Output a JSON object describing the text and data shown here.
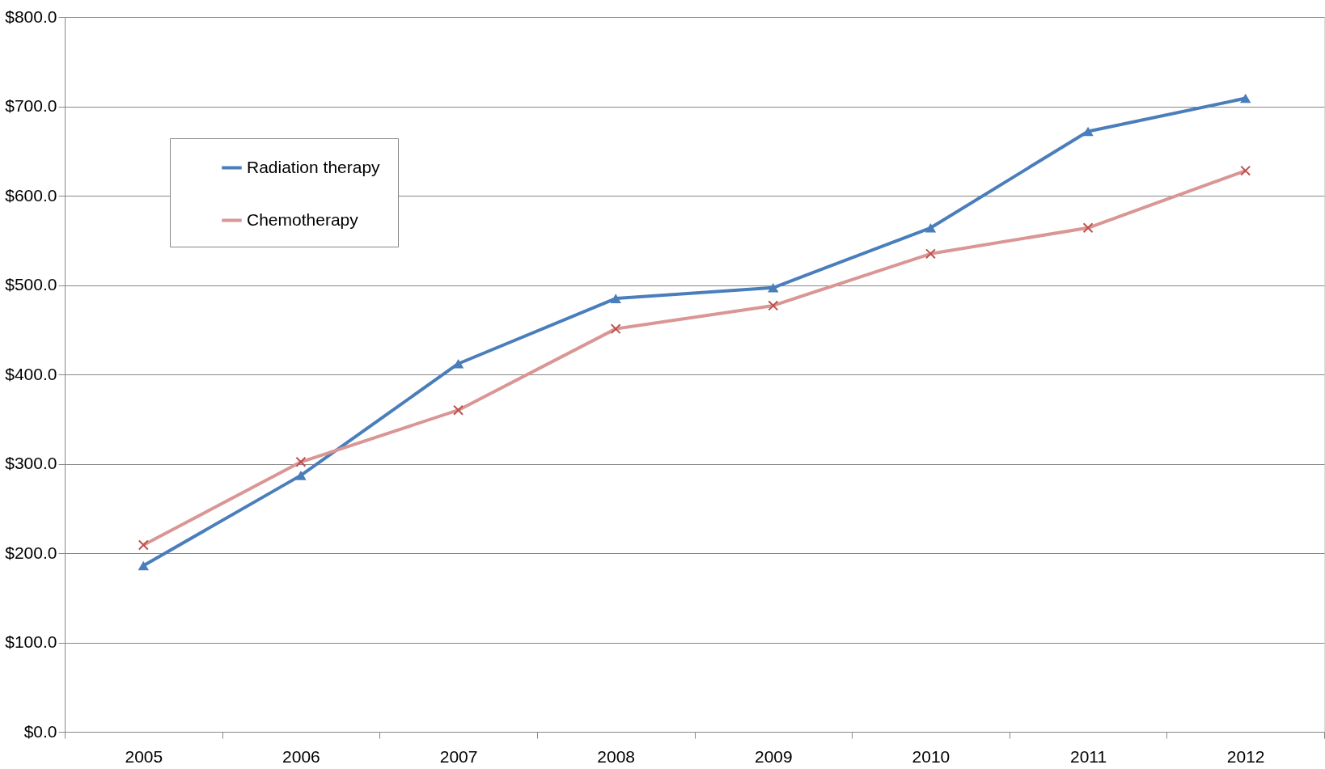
{
  "chart_data": {
    "type": "line",
    "categories": [
      "2005",
      "2006",
      "2007",
      "2008",
      "2009",
      "2010",
      "2011",
      "2012"
    ],
    "series": [
      {
        "name": "Radiation therapy",
        "color": "#4a7ebb",
        "marker": "triangle",
        "values": [
          186,
          287,
          412,
          485,
          497,
          564,
          672,
          709
        ]
      },
      {
        "name": "Chemotherapy",
        "color": "#d99694",
        "marker": "cross",
        "values": [
          209,
          302,
          360,
          451,
          477,
          535,
          564,
          628
        ]
      }
    ],
    "ylim": [
      0,
      800
    ],
    "yticks": [
      {
        "value": 0,
        "label": "$0.0"
      },
      {
        "value": 100,
        "label": "$100.0"
      },
      {
        "value": 200,
        "label": "$200.0"
      },
      {
        "value": 300,
        "label": "$300.0"
      },
      {
        "value": 400,
        "label": "$400.0"
      },
      {
        "value": 500,
        "label": "$500.0"
      },
      {
        "value": 600,
        "label": "$600.0"
      },
      {
        "value": 700,
        "label": "$700.0"
      },
      {
        "value": 800,
        "label": "$800.0"
      }
    ],
    "grid": "y",
    "legend": "top left"
  }
}
